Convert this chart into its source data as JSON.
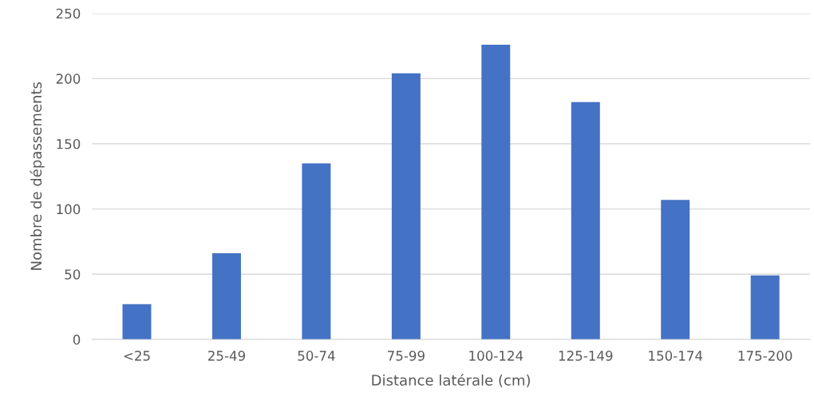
{
  "chart_data": {
    "type": "bar",
    "xlabel": "Distance latérale (cm)",
    "ylabel": "Nombre de dépassements",
    "categories": [
      "<25",
      "25-49",
      "50-74",
      "75-99",
      "100-124",
      "125-149",
      "150-174",
      "175-200"
    ],
    "values": [
      27,
      66,
      135,
      204,
      226,
      182,
      107,
      49
    ],
    "color": "#4472c4",
    "ylim": [
      0,
      250
    ],
    "yticks": [
      0,
      50,
      100,
      150,
      200,
      250
    ],
    "grid": "y"
  }
}
